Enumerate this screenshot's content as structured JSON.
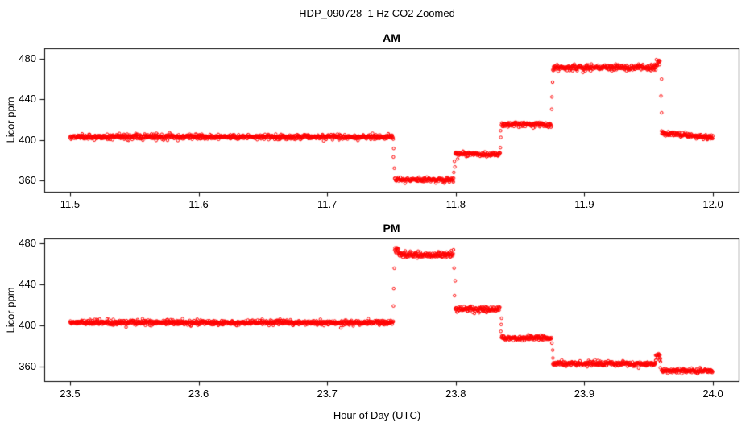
{
  "figure": {
    "title": "HDP_090728  1 Hz CO2 Zoomed",
    "xlabel": "Hour of Day (UTC)",
    "background_color": "#ffffff",
    "axis_color": "#000000",
    "point_color": "#ff0000"
  },
  "chart_data": [
    {
      "id": "am",
      "type": "scatter",
      "title": "AM",
      "ylabel": "Licor ppm",
      "marker": "open-circle",
      "point_color": "#ff0000",
      "grid": false,
      "xlim": [
        11.48,
        12.02
      ],
      "ylim": [
        349,
        490
      ],
      "xticks": [
        11.5,
        11.6,
        11.7,
        11.8,
        11.9,
        12.0
      ],
      "xtick_labels": [
        "11.5",
        "11.6",
        "11.7",
        "11.8",
        "11.9",
        "12.0"
      ],
      "yticks": [
        360,
        400,
        440,
        480
      ],
      "ytick_labels": [
        "360",
        "400",
        "440",
        "480"
      ],
      "sample_rate_per_hour": 3600,
      "segments": [
        {
          "t0": 11.5,
          "t1": 11.7515,
          "y": 403,
          "noise": 1.2
        },
        {
          "t0": 11.7525,
          "t1": 11.7985,
          "y": 361,
          "noise": 1.1
        },
        {
          "t0": 11.7995,
          "t1": 11.8345,
          "y": 386,
          "noise": 1.1
        },
        {
          "t0": 11.8355,
          "t1": 11.8745,
          "y": 415,
          "noise": 1.2
        },
        {
          "t0": 11.8755,
          "t1": 11.9555,
          "y": 471,
          "noise": 1.4
        },
        {
          "t0": 11.956,
          "t1": 11.959,
          "y": 476,
          "noise": 2.0
        },
        {
          "t0": 11.96,
          "t1": 12.0,
          "y": 407,
          "y_end": 402,
          "noise": 1.2
        }
      ]
    },
    {
      "id": "pm",
      "type": "scatter",
      "title": "PM",
      "ylabel": "Licor ppm",
      "marker": "open-circle",
      "point_color": "#ff0000",
      "grid": false,
      "xlim": [
        23.48,
        24.02
      ],
      "ylim": [
        346,
        485
      ],
      "xticks": [
        23.5,
        23.6,
        23.7,
        23.8,
        23.9,
        24.0
      ],
      "xtick_labels": [
        "23.5",
        "23.6",
        "23.7",
        "23.8",
        "23.9",
        "24.0"
      ],
      "yticks": [
        360,
        400,
        440,
        480
      ],
      "ytick_labels": [
        "360",
        "400",
        "440",
        "480"
      ],
      "sample_rate_per_hour": 3600,
      "segments": [
        {
          "t0": 23.5,
          "t1": 23.7515,
          "y": 403,
          "noise": 1.2
        },
        {
          "t0": 23.7525,
          "t1": 23.7555,
          "y": 474,
          "noise": 2.0
        },
        {
          "t0": 23.756,
          "t1": 23.7985,
          "y": 469,
          "noise": 1.4
        },
        {
          "t0": 23.7995,
          "t1": 23.8345,
          "y": 416,
          "noise": 1.2
        },
        {
          "t0": 23.8355,
          "t1": 23.8745,
          "y": 388,
          "noise": 1.1
        },
        {
          "t0": 23.8755,
          "t1": 23.9555,
          "y": 363,
          "noise": 1.1
        },
        {
          "t0": 23.956,
          "t1": 23.959,
          "y": 370,
          "noise": 2.0
        },
        {
          "t0": 23.96,
          "t1": 24.0,
          "y": 356,
          "noise": 1.1
        }
      ]
    }
  ]
}
